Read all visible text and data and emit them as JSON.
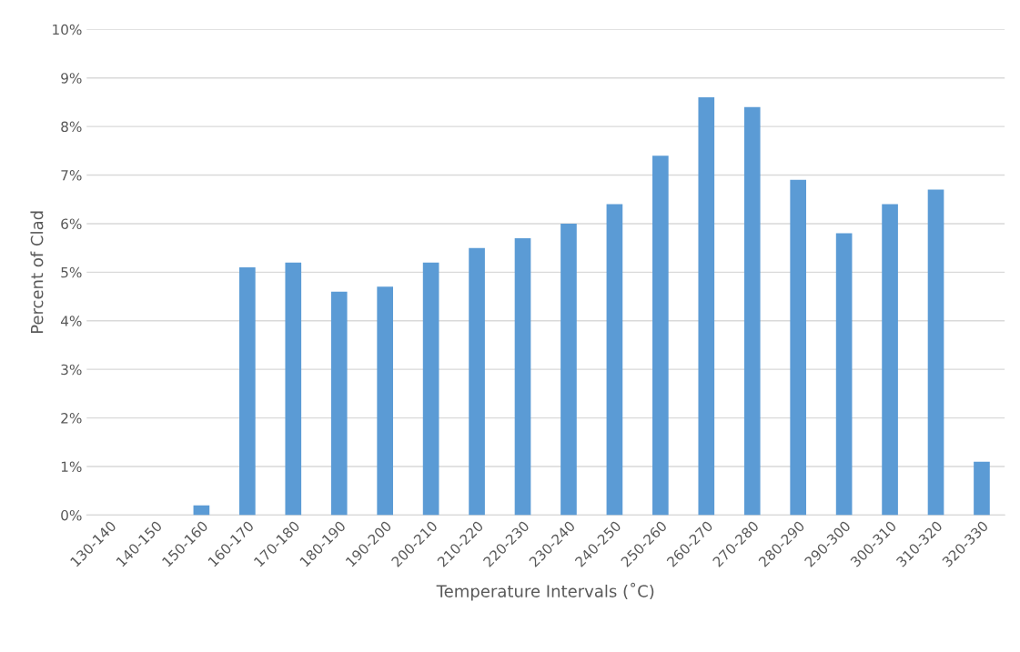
{
  "chart_data": {
    "type": "bar",
    "xlabel": "Temperature Intervals (˚C)",
    "ylabel": "Percent of Clad",
    "categories": [
      "130-140",
      "140-150",
      "150-160",
      "160-170",
      "170-180",
      "180-190",
      "190-200",
      "200-210",
      "210-220",
      "220-230",
      "230-240",
      "240-250",
      "250-260",
      "260-270",
      "270-280",
      "280-290",
      "290-300",
      "300-310",
      "310-320",
      "320-330"
    ],
    "values": [
      0,
      0,
      0.2,
      5.1,
      5.2,
      4.6,
      4.7,
      5.2,
      5.5,
      5.7,
      6.0,
      6.4,
      7.4,
      8.6,
      8.4,
      6.9,
      5.8,
      6.4,
      6.7,
      1.1
    ],
    "color": "#5b9bd5",
    "ylim": [
      0,
      10
    ],
    "yticks": [
      {
        "value": 0,
        "label": "0%"
      },
      {
        "value": 1,
        "label": "1%"
      },
      {
        "value": 2,
        "label": "2%"
      },
      {
        "value": 3,
        "label": "3%"
      },
      {
        "value": 4,
        "label": "4%"
      },
      {
        "value": 5,
        "label": "5%"
      },
      {
        "value": 6,
        "label": "6%"
      },
      {
        "value": 7,
        "label": "7%"
      },
      {
        "value": 8,
        "label": "8%"
      },
      {
        "value": 9,
        "label": "9%"
      },
      {
        "value": 10,
        "label": "10%"
      }
    ],
    "grid": "y"
  }
}
